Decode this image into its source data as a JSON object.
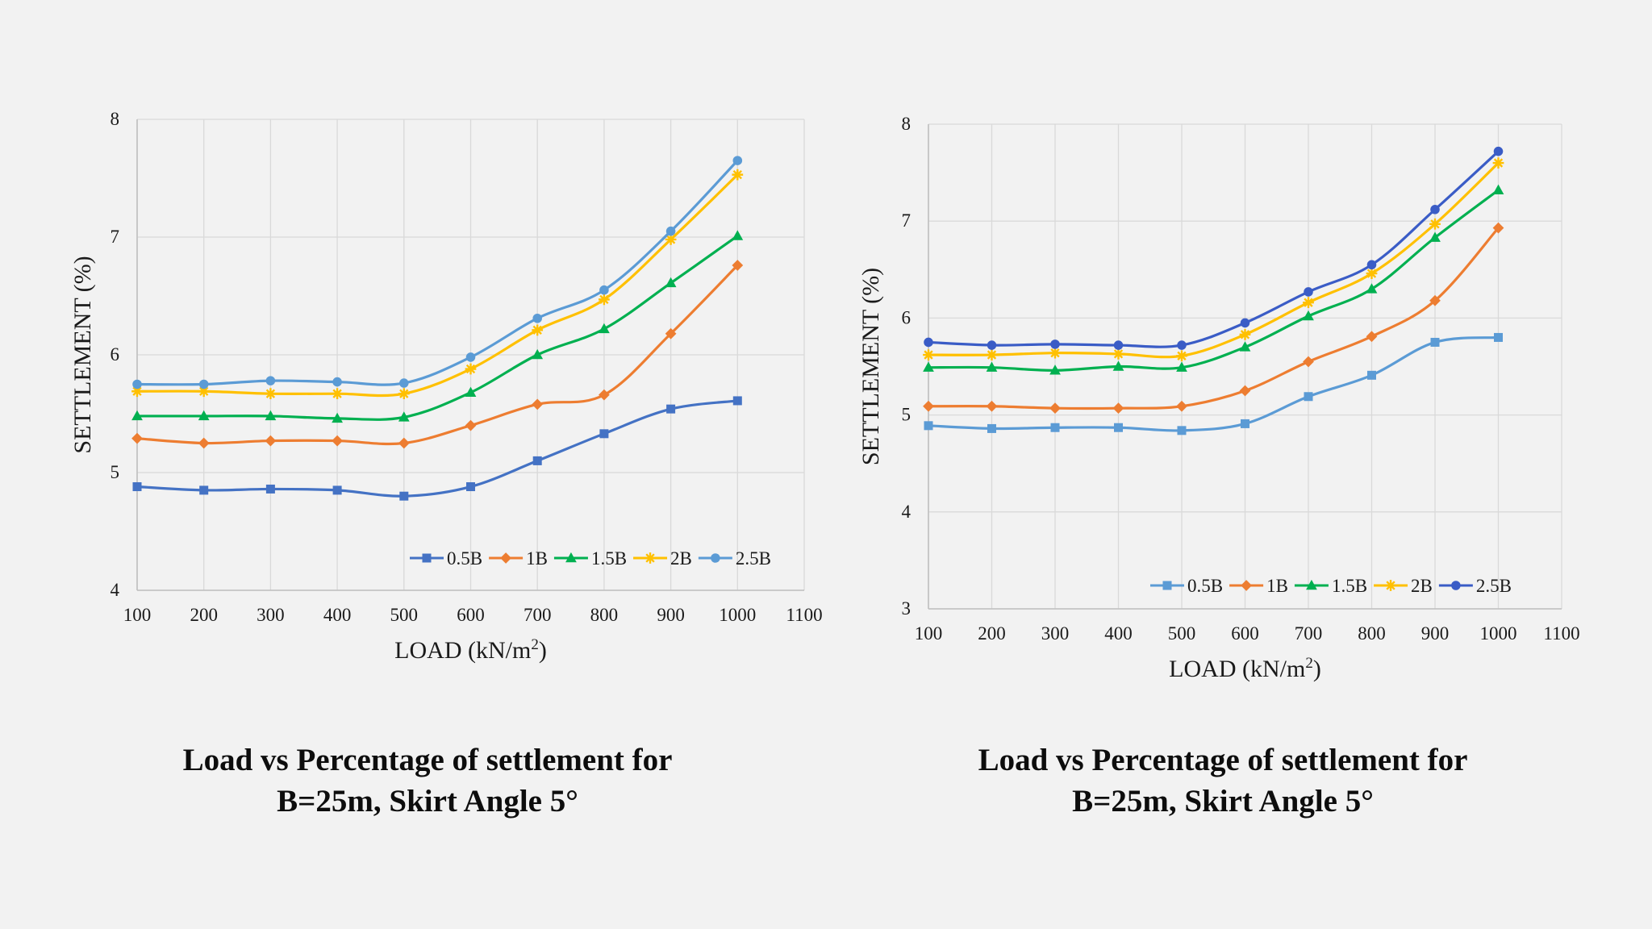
{
  "charts": [
    {
      "caption_line1": "Load vs Percentage of settlement for",
      "caption_line2": "B=25m, Skirt Angle 5°",
      "chart_data": {
        "type": "line",
        "xlabel": "LOAD (kN/m",
        "xlabel_sup": "2",
        "xlabel_end": ")",
        "ylabel": "SETTLEMENT (%)",
        "xlim": [
          100,
          1100
        ],
        "ylim": [
          4,
          8
        ],
        "xticks": [
          100,
          200,
          300,
          400,
          500,
          600,
          700,
          800,
          900,
          1000,
          1100
        ],
        "yticks": [
          4,
          5,
          6,
          7,
          8
        ],
        "legend_position": "bottom-right",
        "x": [
          100,
          200,
          300,
          400,
          500,
          600,
          700,
          800,
          900,
          1000
        ],
        "series": [
          {
            "name": "0.5B",
            "color": "#4472c4",
            "marker": "square",
            "values": [
              4.88,
              4.85,
              4.86,
              4.85,
              4.8,
              4.88,
              5.1,
              5.33,
              5.54,
              5.61
            ]
          },
          {
            "name": "1B",
            "color": "#ed7d31",
            "marker": "diamond",
            "values": [
              5.29,
              5.25,
              5.27,
              5.27,
              5.25,
              5.4,
              5.58,
              5.66,
              6.18,
              6.76
            ]
          },
          {
            "name": "1.5B",
            "color": "#00b050",
            "marker": "triangle",
            "values": [
              5.48,
              5.48,
              5.48,
              5.46,
              5.47,
              5.68,
              6.0,
              6.22,
              6.61,
              7.01
            ]
          },
          {
            "name": "2B",
            "color": "#ffc000",
            "marker": "star",
            "values": [
              5.69,
              5.69,
              5.67,
              5.67,
              5.67,
              5.88,
              6.21,
              6.47,
              6.98,
              7.53
            ]
          },
          {
            "name": "2.5B",
            "color": "#5b9bd5",
            "marker": "circle",
            "values": [
              5.75,
              5.75,
              5.78,
              5.77,
              5.76,
              5.98,
              6.31,
              6.55,
              7.05,
              7.65
            ]
          }
        ]
      }
    },
    {
      "caption_line1": "Load vs Percentage of settlement for",
      "caption_line2": "B=25m, Skirt Angle 5°",
      "chart_data": {
        "type": "line",
        "xlabel": "LOAD (kN/m",
        "xlabel_sup": "2",
        "xlabel_end": ")",
        "ylabel": "SETTLEMENT (%)",
        "xlim": [
          100,
          1100
        ],
        "ylim": [
          3,
          8
        ],
        "xticks": [
          100,
          200,
          300,
          400,
          500,
          600,
          700,
          800,
          900,
          1000,
          1100
        ],
        "yticks": [
          3,
          4,
          5,
          6,
          7,
          8
        ],
        "legend_position": "bottom-right",
        "x": [
          100,
          200,
          300,
          400,
          500,
          600,
          700,
          800,
          900,
          1000
        ],
        "series": [
          {
            "name": "0.5B",
            "color": "#5b9bd5",
            "marker": "square",
            "values": [
              4.89,
              4.86,
              4.87,
              4.87,
              4.84,
              4.91,
              5.19,
              5.41,
              5.75,
              5.8
            ]
          },
          {
            "name": "1B",
            "color": "#ed7d31",
            "marker": "diamond",
            "values": [
              5.09,
              5.09,
              5.07,
              5.07,
              5.09,
              5.25,
              5.55,
              5.81,
              6.18,
              6.93
            ]
          },
          {
            "name": "1.5B",
            "color": "#00b050",
            "marker": "triangle",
            "values": [
              5.49,
              5.49,
              5.46,
              5.5,
              5.49,
              5.7,
              6.02,
              6.3,
              6.83,
              7.32
            ]
          },
          {
            "name": "2B",
            "color": "#ffc000",
            "marker": "star",
            "values": [
              5.62,
              5.62,
              5.64,
              5.63,
              5.61,
              5.83,
              6.16,
              6.46,
              6.97,
              7.6
            ]
          },
          {
            "name": "2.5B",
            "color": "#3a5cc6",
            "marker": "circle",
            "values": [
              5.75,
              5.72,
              5.73,
              5.72,
              5.72,
              5.95,
              6.27,
              6.55,
              7.12,
              7.72
            ]
          }
        ]
      }
    }
  ]
}
